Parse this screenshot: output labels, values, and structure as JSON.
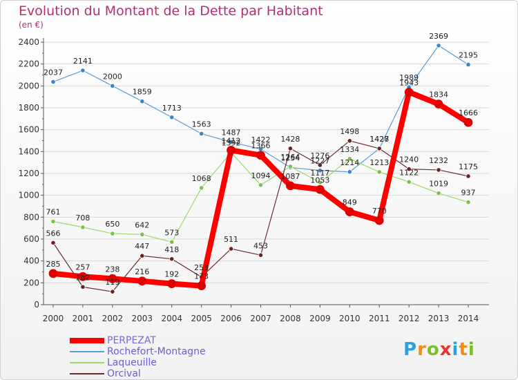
{
  "title": "Evolution du Montant de la Dette par Habitant",
  "subtitle": "(en €)",
  "logo": {
    "letters": [
      "P",
      "r",
      "o",
      "x",
      "i",
      "t",
      "i"
    ],
    "colors": [
      "#2aa1d8",
      "#f28c1e",
      "#7bbf2a",
      "#e8352b",
      "#2aa1d8",
      "#f28c1e",
      "#7bbf2a"
    ]
  },
  "chart_data": {
    "type": "line",
    "title": "Evolution du Montant de la Dette par Habitant",
    "ylabel": "(en €)",
    "xlabel": "",
    "x": [
      "2000",
      "2001",
      "2002",
      "2003",
      "2004",
      "2005",
      "2006",
      "2007",
      "2008",
      "2009",
      "2010",
      "2011",
      "2012",
      "2013",
      "2014"
    ],
    "ylim": [
      0,
      2400
    ],
    "yticks": [
      "0",
      "200",
      "400",
      "600",
      "800",
      "1000",
      "1200",
      "1400",
      "1600",
      "1800",
      "2000",
      "2200",
      "2400"
    ],
    "grid": "horizontal",
    "legend_position": "bottom-left",
    "series": [
      {
        "name": "Rochefort-Montagne",
        "color": "#5b9bd5",
        "dot": "#3c86c8",
        "width": 1.2,
        "values": [
          2037,
          2141,
          2000,
          1859,
          1713,
          1563,
          1487,
          1422,
          1254,
          1227,
          1214,
          1427,
          1989,
          2369,
          2195
        ],
        "labels": [
          "2037",
          "2141",
          "2000",
          "1859",
          "1713",
          "1563",
          "1487",
          "1422",
          "1254",
          "1227",
          "1214",
          "1427",
          "1989",
          "2369",
          "2195"
        ]
      },
      {
        "name": "Laqueuille",
        "color": "#9ad96b",
        "dot": "#7fc04a",
        "width": 1.2,
        "values": [
          761,
          708,
          650,
          642,
          573,
          1068,
          1392,
          1094,
          1264,
          1117,
          1334,
          1213,
          1122,
          1019,
          937
        ],
        "labels": [
          "761",
          "708",
          "650",
          "642",
          "573",
          "1068",
          "1392",
          "1094",
          "1264",
          "1117",
          "1334",
          "1213",
          "1122",
          "1019",
          "937"
        ]
      },
      {
        "name": "Orcival",
        "color": "#6b2a2a",
        "dot": "#6b2424",
        "width": 1.2,
        "values": [
          566,
          162,
          119,
          447,
          418,
          253,
          511,
          453,
          1428,
          1276,
          1498,
          1428,
          1240,
          1232,
          1175
        ],
        "labels": [
          "566",
          "162",
          "119",
          "447",
          "418",
          "253",
          "511",
          "453",
          "1428",
          "1276",
          "1498",
          "1428",
          "1240",
          "1232",
          "1175"
        ]
      },
      {
        "name": "PERPEZAT",
        "color": "#ff0000",
        "dot": "#e00000",
        "width": 8,
        "values": [
          285,
          257,
          238,
          216,
          192,
          173,
          1412,
          1366,
          1087,
          1053,
          849,
          770,
          1943,
          1834,
          1666
        ],
        "labels": [
          "285",
          "257",
          "238",
          "216",
          "192",
          "173",
          "1412",
          "1366",
          "1087",
          "1053",
          "849",
          "770",
          "1943",
          "1834",
          "1666"
        ]
      }
    ],
    "legend_order": [
      "PERPEZAT",
      "Rochefort-Montagne",
      "Laqueuille",
      "Orcival"
    ]
  }
}
